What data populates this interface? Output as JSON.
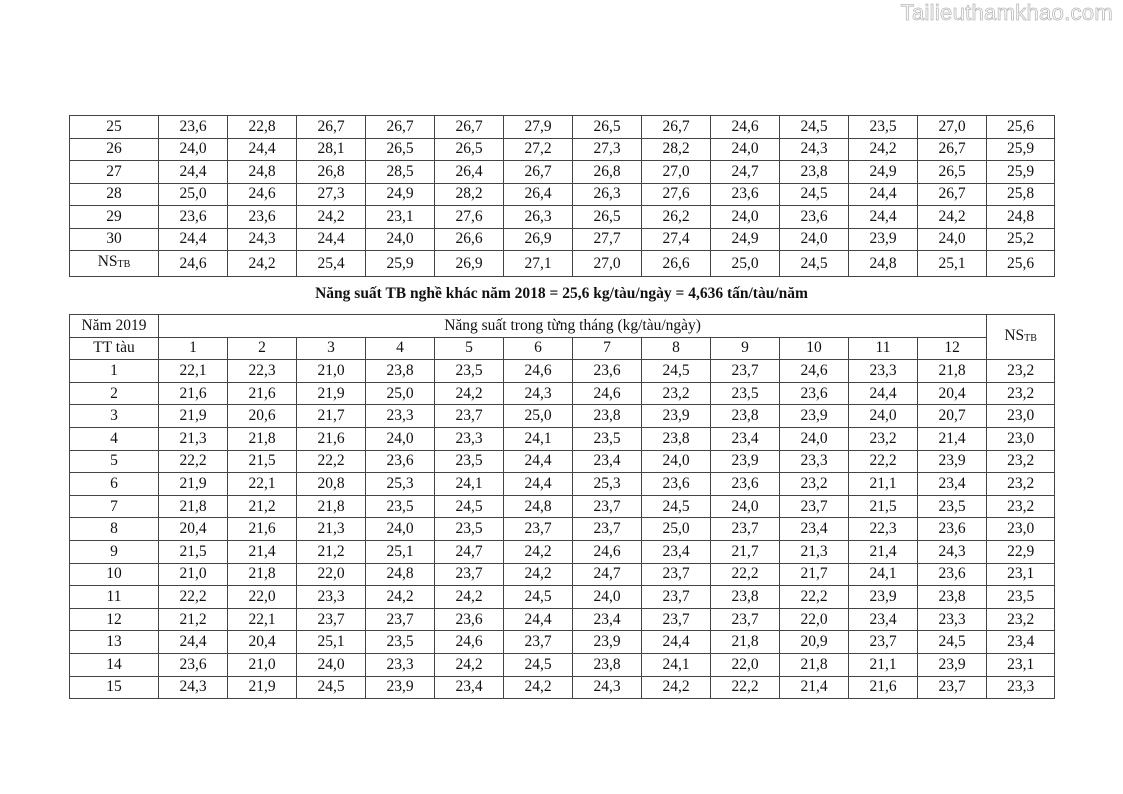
{
  "watermark": "Tailieuthamkhao.com",
  "table1": {
    "rows": [
      [
        "25",
        "23,6",
        "22,8",
        "26,7",
        "26,7",
        "26,7",
        "27,9",
        "26,5",
        "26,7",
        "24,6",
        "24,5",
        "23,5",
        "27,0",
        "25,6"
      ],
      [
        "26",
        "24,0",
        "24,4",
        "28,1",
        "26,5",
        "26,5",
        "27,2",
        "27,3",
        "28,2",
        "24,0",
        "24,3",
        "24,2",
        "26,7",
        "25,9"
      ],
      [
        "27",
        "24,4",
        "24,8",
        "26,8",
        "28,5",
        "26,4",
        "26,7",
        "26,8",
        "27,0",
        "24,7",
        "23,8",
        "24,9",
        "26,5",
        "25,9"
      ],
      [
        "28",
        "25,0",
        "24,6",
        "27,3",
        "24,9",
        "28,2",
        "26,4",
        "26,3",
        "27,6",
        "23,6",
        "24,5",
        "24,4",
        "26,7",
        "25,8"
      ],
      [
        "29",
        "23,6",
        "23,6",
        "24,2",
        "23,1",
        "27,6",
        "26,3",
        "26,5",
        "26,2",
        "24,0",
        "23,6",
        "24,4",
        "24,2",
        "24,8"
      ],
      [
        "30",
        "24,4",
        "24,3",
        "24,4",
        "24,0",
        "26,6",
        "26,9",
        "27,7",
        "27,4",
        "24,9",
        "24,0",
        "23,9",
        "24,0",
        "25,2"
      ]
    ],
    "avg_label_main": "NS",
    "avg_label_sub": "TB",
    "avg_values": [
      "24,6",
      "24,2",
      "25,4",
      "25,9",
      "26,9",
      "27,1",
      "27,0",
      "26,6",
      "25,0",
      "24,5",
      "24,8",
      "25,1",
      "25,6"
    ]
  },
  "caption": "Năng suất TB nghề khác năm 2018 = 25,6 kg/tàu/ngày = 4,636 tấn/tàu/năm",
  "table2": {
    "year_label": "Năm 2019",
    "group_header": "Năng suất trong từng tháng (kg/tàu/ngày)",
    "avg_header_main": "NS",
    "avg_header_sub": "TB",
    "row_header": "TT tàu",
    "months": [
      "1",
      "2",
      "3",
      "4",
      "5",
      "6",
      "7",
      "8",
      "9",
      "10",
      "11",
      "12"
    ],
    "rows": [
      [
        "1",
        "22,1",
        "22,3",
        "21,0",
        "23,8",
        "23,5",
        "24,6",
        "23,6",
        "24,5",
        "23,7",
        "24,6",
        "23,3",
        "21,8",
        "23,2"
      ],
      [
        "2",
        "21,6",
        "21,6",
        "21,9",
        "25,0",
        "24,2",
        "24,3",
        "24,6",
        "23,2",
        "23,5",
        "23,6",
        "24,4",
        "20,4",
        "23,2"
      ],
      [
        "3",
        "21,9",
        "20,6",
        "21,7",
        "23,3",
        "23,7",
        "25,0",
        "23,8",
        "23,9",
        "23,8",
        "23,9",
        "24,0",
        "20,7",
        "23,0"
      ],
      [
        "4",
        "21,3",
        "21,8",
        "21,6",
        "24,0",
        "23,3",
        "24,1",
        "23,5",
        "23,8",
        "23,4",
        "24,0",
        "23,2",
        "21,4",
        "23,0"
      ],
      [
        "5",
        "22,2",
        "21,5",
        "22,2",
        "23,6",
        "23,5",
        "24,4",
        "23,4",
        "24,0",
        "23,9",
        "23,3",
        "22,2",
        "23,9",
        "23,2"
      ],
      [
        "6",
        "21,9",
        "22,1",
        "20,8",
        "25,3",
        "24,1",
        "24,4",
        "25,3",
        "23,6",
        "23,6",
        "23,2",
        "21,1",
        "23,4",
        "23,2"
      ],
      [
        "7",
        "21,8",
        "21,2",
        "21,8",
        "23,5",
        "24,5",
        "24,8",
        "23,7",
        "24,5",
        "24,0",
        "23,7",
        "21,5",
        "23,5",
        "23,2"
      ],
      [
        "8",
        "20,4",
        "21,6",
        "21,3",
        "24,0",
        "23,5",
        "23,7",
        "23,7",
        "25,0",
        "23,7",
        "23,4",
        "22,3",
        "23,6",
        "23,0"
      ],
      [
        "9",
        "21,5",
        "21,4",
        "21,2",
        "25,1",
        "24,7",
        "24,2",
        "24,6",
        "23,4",
        "21,7",
        "21,3",
        "21,4",
        "24,3",
        "22,9"
      ],
      [
        "10",
        "21,0",
        "21,8",
        "22,0",
        "24,8",
        "23,7",
        "24,2",
        "24,7",
        "23,7",
        "22,2",
        "21,7",
        "24,1",
        "23,6",
        "23,1"
      ],
      [
        "11",
        "22,2",
        "22,0",
        "23,3",
        "24,2",
        "24,2",
        "24,5",
        "24,0",
        "23,7",
        "23,8",
        "22,2",
        "23,9",
        "23,8",
        "23,5"
      ],
      [
        "12",
        "21,2",
        "22,1",
        "23,7",
        "23,7",
        "23,6",
        "24,4",
        "23,4",
        "23,7",
        "23,7",
        "22,0",
        "23,4",
        "23,3",
        "23,2"
      ],
      [
        "13",
        "24,4",
        "20,4",
        "25,1",
        "23,5",
        "24,6",
        "23,7",
        "23,9",
        "24,4",
        "21,8",
        "20,9",
        "23,7",
        "24,5",
        "23,4"
      ],
      [
        "14",
        "23,6",
        "21,0",
        "24,0",
        "23,3",
        "24,2",
        "24,5",
        "23,8",
        "24,1",
        "22,0",
        "21,8",
        "21,1",
        "23,9",
        "23,1"
      ],
      [
        "15",
        "24,3",
        "21,9",
        "24,5",
        "23,9",
        "23,4",
        "24,2",
        "24,3",
        "24,2",
        "22,2",
        "21,4",
        "21,6",
        "23,7",
        "23,3"
      ]
    ]
  }
}
